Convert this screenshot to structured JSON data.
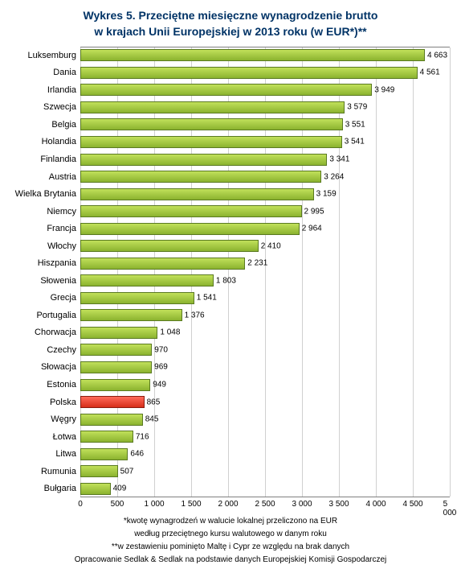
{
  "title_line1": "Wykres 5. Przeciętne miesięczne wynagrodzenie brutto",
  "title_line2": "w krajach Unii Europejskiej w 2013 roku (w EUR*)**",
  "chart": {
    "type": "bar-horizontal",
    "xmin": 0,
    "xmax": 5000,
    "xtick_step": 500,
    "xticks": [
      "0",
      "500",
      "1 000",
      "1 500",
      "2 000",
      "2 500",
      "3 000",
      "3 500",
      "4 000",
      "4 500",
      "5 000"
    ],
    "bar_default_fill_top": "#c1e05a",
    "bar_default_fill_bottom": "#8bb32f",
    "bar_highlight_fill_top": "#ff6b5a",
    "bar_highlight_fill_bottom": "#d62e1a",
    "bar_border": "#5a7a21",
    "bar_highlight_border": "#8a1c10",
    "grid_color": "#d0d0d0",
    "background_color": "#ffffff",
    "title_color": "#003366",
    "title_fontsize": 14,
    "label_fontsize": 11,
    "value_fontsize": 10,
    "tick_fontsize": 10,
    "rows": [
      {
        "label": "Luksemburg",
        "value": 4663,
        "value_label": "4 663",
        "highlight": false
      },
      {
        "label": "Dania",
        "value": 4561,
        "value_label": "4 561",
        "highlight": false
      },
      {
        "label": "Irlandia",
        "value": 3949,
        "value_label": "3 949",
        "highlight": false
      },
      {
        "label": "Szwecja",
        "value": 3579,
        "value_label": "3 579",
        "highlight": false
      },
      {
        "label": "Belgia",
        "value": 3551,
        "value_label": "3 551",
        "highlight": false
      },
      {
        "label": "Holandia",
        "value": 3541,
        "value_label": "3 541",
        "highlight": false
      },
      {
        "label": "Finlandia",
        "value": 3341,
        "value_label": "3 341",
        "highlight": false
      },
      {
        "label": "Austria",
        "value": 3264,
        "value_label": "3 264",
        "highlight": false
      },
      {
        "label": "Wielka Brytania",
        "value": 3159,
        "value_label": "3 159",
        "highlight": false
      },
      {
        "label": "Niemcy",
        "value": 2995,
        "value_label": "2 995",
        "highlight": false
      },
      {
        "label": "Francja",
        "value": 2964,
        "value_label": "2 964",
        "highlight": false
      },
      {
        "label": "Włochy",
        "value": 2410,
        "value_label": "2 410",
        "highlight": false
      },
      {
        "label": "Hiszpania",
        "value": 2231,
        "value_label": "2 231",
        "highlight": false
      },
      {
        "label": "Słowenia",
        "value": 1803,
        "value_label": "1 803",
        "highlight": false
      },
      {
        "label": "Grecja",
        "value": 1541,
        "value_label": "1 541",
        "highlight": false
      },
      {
        "label": "Portugalia",
        "value": 1376,
        "value_label": "1 376",
        "highlight": false
      },
      {
        "label": "Chorwacja",
        "value": 1048,
        "value_label": "1 048",
        "highlight": false
      },
      {
        "label": "Czechy",
        "value": 970,
        "value_label": "970",
        "highlight": false
      },
      {
        "label": "Słowacja",
        "value": 969,
        "value_label": "969",
        "highlight": false
      },
      {
        "label": "Estonia",
        "value": 949,
        "value_label": "949",
        "highlight": false
      },
      {
        "label": "Polska",
        "value": 865,
        "value_label": "865",
        "highlight": true
      },
      {
        "label": "Węgry",
        "value": 845,
        "value_label": "845",
        "highlight": false
      },
      {
        "label": "Łotwa",
        "value": 716,
        "value_label": "716",
        "highlight": false
      },
      {
        "label": "Litwa",
        "value": 646,
        "value_label": "646",
        "highlight": false
      },
      {
        "label": "Rumunia",
        "value": 507,
        "value_label": "507",
        "highlight": false
      },
      {
        "label": "Bułgaria",
        "value": 409,
        "value_label": "409",
        "highlight": false
      }
    ]
  },
  "footnotes": [
    "*kwotę wynagrodzeń w walucie lokalnej przeliczono na EUR",
    "według przeciętnego kursu walutowego w danym roku",
    "**w zestawieniu pominięto Maltę i Cypr ze względu na brak danych",
    "Opracowanie Sedlak & Sedlak na podstawie danych Europejskiej Komisji Gospodarczej"
  ]
}
